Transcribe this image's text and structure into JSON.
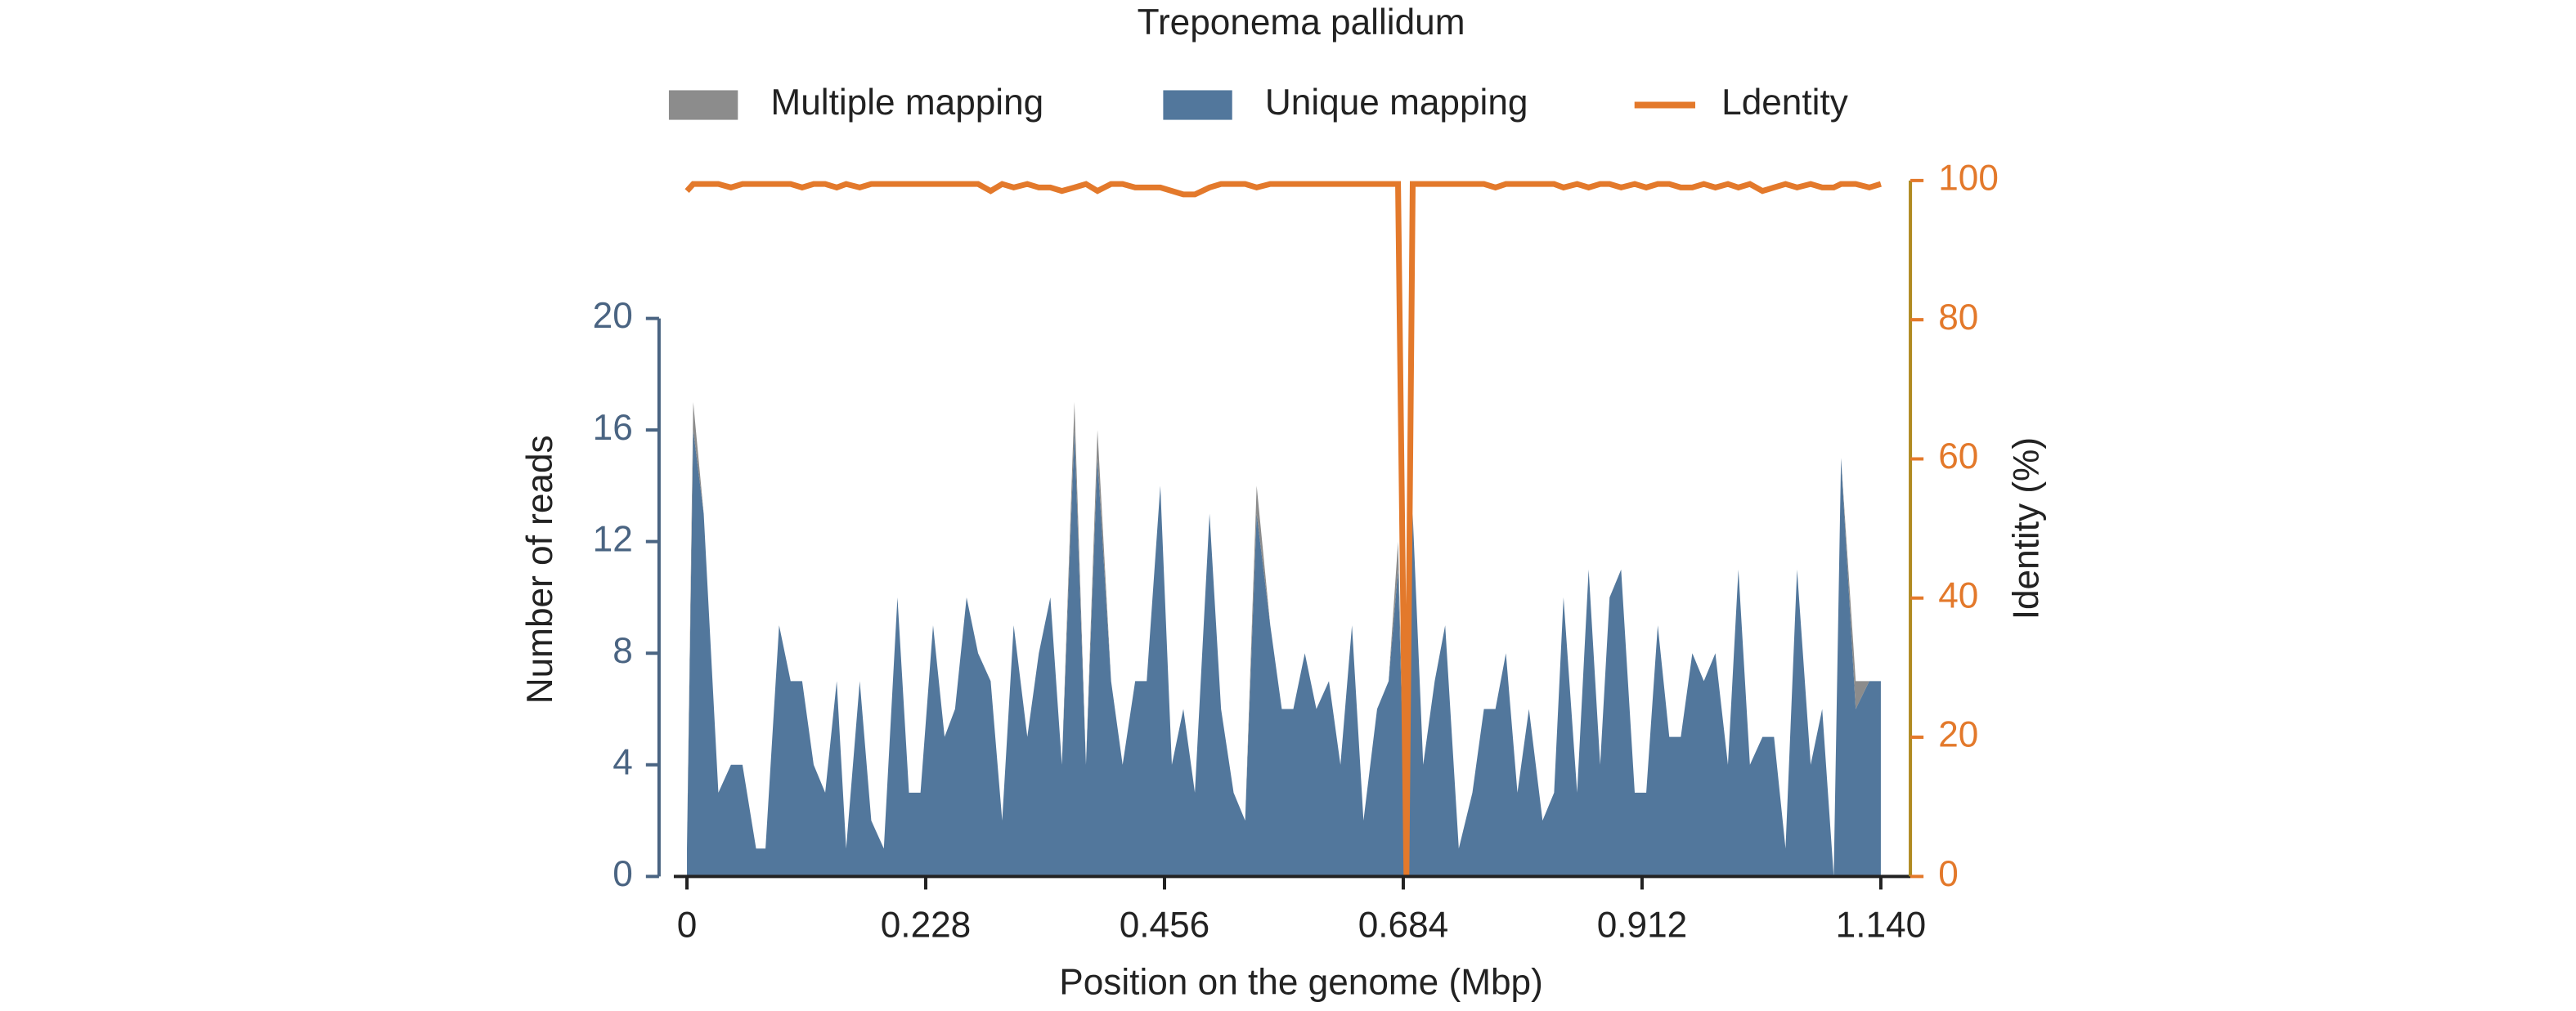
{
  "chart_data": {
    "type": "stacked_area_line",
    "title": "Treponema pallidum",
    "xlabel": "Position on the genome (Mbp)",
    "ylabel": "Number of reads",
    "y2label": "Identity (%)",
    "x": [
      0,
      0.006,
      0.016,
      0.03,
      0.042,
      0.053,
      0.066,
      0.075,
      0.088,
      0.099,
      0.11,
      0.121,
      0.132,
      0.143,
      0.152,
      0.165,
      0.176,
      0.188,
      0.201,
      0.212,
      0.223,
      0.235,
      0.246,
      0.256,
      0.267,
      0.278,
      0.29,
      0.301,
      0.312,
      0.325,
      0.336,
      0.347,
      0.358,
      0.37,
      0.381,
      0.392,
      0.405,
      0.416,
      0.428,
      0.439,
      0.452,
      0.463,
      0.474,
      0.485,
      0.499,
      0.51,
      0.522,
      0.533,
      0.544,
      0.557,
      0.568,
      0.579,
      0.59,
      0.601,
      0.613,
      0.624,
      0.635,
      0.646,
      0.659,
      0.67,
      0.679,
      0.687,
      0.693,
      0.703,
      0.714,
      0.724,
      0.737,
      0.75,
      0.761,
      0.772,
      0.782,
      0.793,
      0.804,
      0.817,
      0.828,
      0.837,
      0.85,
      0.861,
      0.872,
      0.881,
      0.892,
      0.905,
      0.916,
      0.927,
      0.938,
      0.949,
      0.96,
      0.971,
      0.982,
      0.994,
      1.004,
      1.015,
      1.027,
      1.038,
      1.049,
      1.06,
      1.073,
      1.084,
      1.095,
      1.102,
      1.116,
      1.129,
      1.14
    ],
    "series": [
      {
        "name": "Multiple mapping",
        "color": "#8c8c8c",
        "values": [
          0,
          1,
          0,
          0,
          0,
          0,
          0,
          0,
          0,
          0,
          0,
          0,
          0,
          0,
          0,
          0,
          0,
          0,
          0,
          0,
          0,
          0,
          0,
          0,
          0,
          0,
          0,
          0,
          0,
          0,
          0,
          0,
          0,
          1,
          0,
          1,
          0,
          0,
          0,
          0,
          0,
          0,
          0,
          0,
          0,
          0,
          0,
          0,
          1,
          0,
          0,
          0,
          0,
          0,
          0,
          0,
          0,
          0,
          0,
          0,
          1,
          0,
          0,
          0,
          0,
          0,
          0,
          0,
          0,
          0,
          0,
          0,
          0,
          0,
          0,
          0,
          0,
          0,
          0,
          0,
          0,
          0,
          0,
          0,
          0,
          0,
          0,
          0,
          0,
          0,
          0,
          0,
          0,
          0,
          0,
          0,
          0,
          0,
          0,
          0,
          1,
          0,
          0
        ]
      },
      {
        "name": "Unique mapping",
        "color": "#52779c",
        "values": [
          1,
          16,
          13,
          3,
          4,
          4,
          1,
          1,
          9,
          7,
          7,
          4,
          3,
          7,
          1,
          7,
          2,
          1,
          10,
          3,
          3,
          9,
          5,
          6,
          10,
          8,
          7,
          2,
          9,
          5,
          8,
          10,
          4,
          16,
          4,
          15,
          7,
          4,
          7,
          7,
          14,
          4,
          6,
          3,
          13,
          6,
          3,
          2,
          13,
          9,
          6,
          6,
          8,
          6,
          7,
          4,
          9,
          2,
          6,
          7,
          11,
          0,
          13,
          4,
          7,
          9,
          1,
          3,
          6,
          6,
          8,
          3,
          6,
          2,
          3,
          10,
          3,
          11,
          4,
          10,
          11,
          3,
          3,
          9,
          5,
          5,
          8,
          7,
          8,
          4,
          11,
          4,
          5,
          5,
          1,
          11,
          4,
          6,
          0,
          15,
          6,
          7,
          7
        ]
      },
      {
        "name": "Ldentity",
        "color": "#e3792b",
        "axis": "y2",
        "values": [
          98.5,
          99.5,
          99.5,
          99.5,
          99,
          99.5,
          99.5,
          99.5,
          99.5,
          99.5,
          99,
          99.5,
          99.5,
          99,
          99.5,
          99,
          99.5,
          99.5,
          99.5,
          99.5,
          99.5,
          99.5,
          99.5,
          99.5,
          99.5,
          99.5,
          98.5,
          99.5,
          99,
          99.5,
          99,
          99,
          98.5,
          99,
          99.5,
          98.5,
          99.5,
          99.5,
          99,
          99,
          99,
          98.5,
          98,
          98,
          99,
          99.5,
          99.5,
          99.5,
          99,
          99.5,
          99.5,
          99.5,
          99.5,
          99.5,
          99.5,
          99.5,
          99.5,
          99.5,
          99.5,
          99.5,
          99.5,
          0,
          99.5,
          99.5,
          99.5,
          99.5,
          99.5,
          99.5,
          99.5,
          99,
          99.5,
          99.5,
          99.5,
          99.5,
          99.5,
          99,
          99.5,
          99,
          99.5,
          99.5,
          99,
          99.5,
          99,
          99.5,
          99.5,
          99,
          99,
          99.5,
          99,
          99.5,
          99,
          99.5,
          98.5,
          99,
          99.5,
          99,
          99.5,
          99,
          99,
          99.5,
          99.5,
          99,
          99.5
        ]
      }
    ],
    "xlim": [
      0,
      1.14
    ],
    "xticks": [
      0,
      0.228,
      0.456,
      0.684,
      0.912,
      {
        "value": 1.14,
        "label": "1.140"
      }
    ],
    "ylim": [
      0,
      20
    ],
    "yticks": [
      0,
      4,
      8,
      12,
      16,
      20
    ],
    "y2lim": [
      0,
      100
    ],
    "y2ticks": [
      0,
      20,
      40,
      60,
      80,
      100
    ],
    "stacked": true
  }
}
